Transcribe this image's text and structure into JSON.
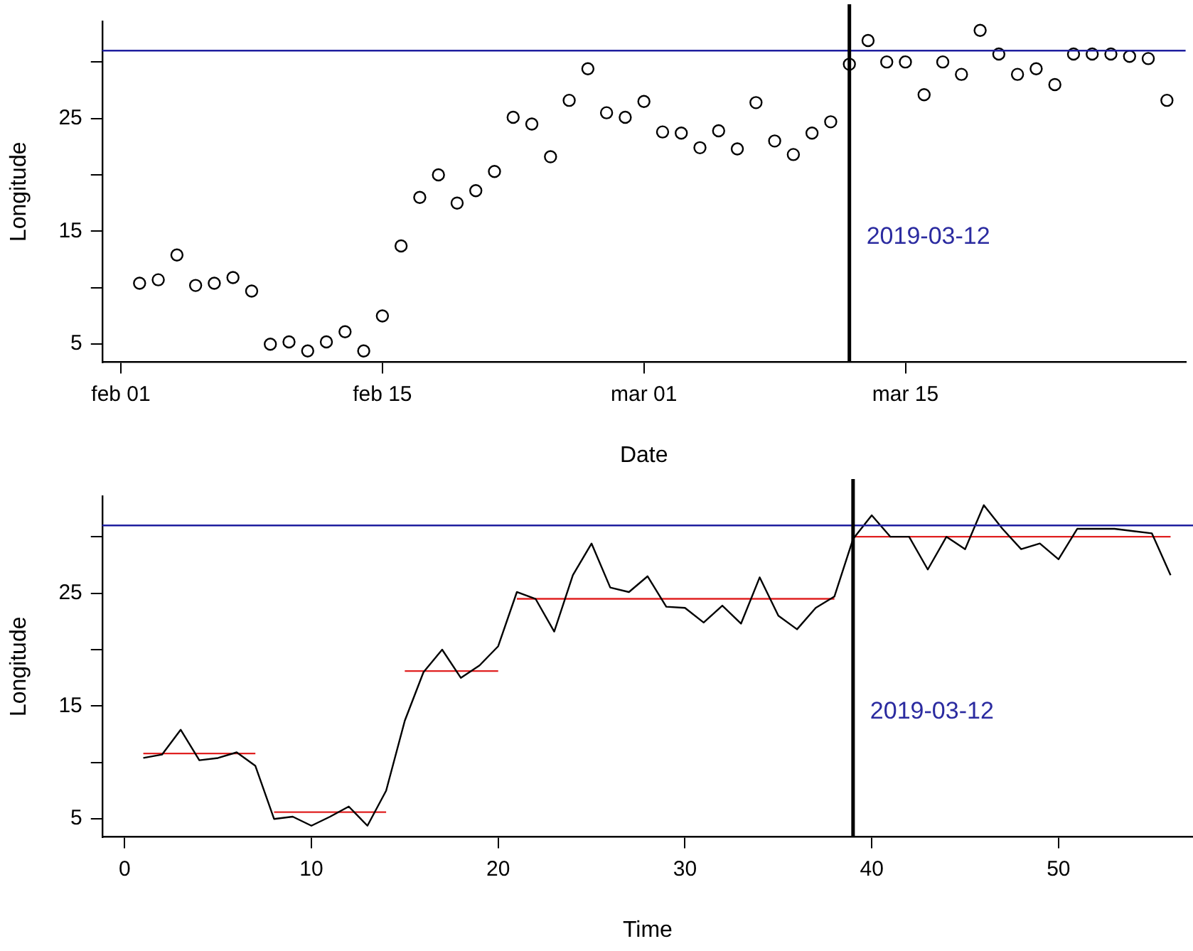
{
  "chart_data": [
    {
      "type": "scatter",
      "xlabel": "Date",
      "ylabel": "Longitude",
      "marker": "circle",
      "grid": false,
      "legend": false,
      "x": [
        "2019-02-02",
        "2019-02-03",
        "2019-02-04",
        "2019-02-05",
        "2019-02-06",
        "2019-02-07",
        "2019-02-08",
        "2019-02-09",
        "2019-02-10",
        "2019-02-11",
        "2019-02-12",
        "2019-02-13",
        "2019-02-14",
        "2019-02-15",
        "2019-02-16",
        "2019-02-17",
        "2019-02-18",
        "2019-02-19",
        "2019-02-20",
        "2019-02-21",
        "2019-02-22",
        "2019-02-23",
        "2019-02-24",
        "2019-02-25",
        "2019-02-26",
        "2019-02-27",
        "2019-02-28",
        "2019-03-01",
        "2019-03-02",
        "2019-03-03",
        "2019-03-04",
        "2019-03-05",
        "2019-03-06",
        "2019-03-07",
        "2019-03-08",
        "2019-03-09",
        "2019-03-10",
        "2019-03-11",
        "2019-03-12",
        "2019-03-13",
        "2019-03-14",
        "2019-03-15",
        "2019-03-16",
        "2019-03-17",
        "2019-03-18",
        "2019-03-19",
        "2019-03-20",
        "2019-03-21",
        "2019-03-22",
        "2019-03-23",
        "2019-03-24",
        "2019-03-25",
        "2019-03-26",
        "2019-03-27",
        "2019-03-28",
        "2019-03-29"
      ],
      "series": [
        {
          "color": "#000000",
          "values": [
            10.4,
            10.7,
            12.9,
            10.2,
            10.4,
            10.9,
            9.7,
            5.0,
            5.2,
            4.4,
            5.2,
            6.1,
            4.4,
            7.5,
            13.7,
            18.0,
            20.0,
            17.5,
            18.6,
            20.3,
            25.1,
            24.5,
            21.6,
            26.6,
            29.4,
            25.5,
            25.1,
            26.5,
            23.8,
            23.7,
            22.4,
            23.9,
            22.3,
            26.4,
            23.0,
            21.8,
            23.7,
            24.7,
            29.8,
            31.9,
            30.0,
            30.0,
            27.1,
            30.0,
            28.9,
            32.8,
            30.7,
            28.9,
            29.4,
            28.0,
            30.7,
            30.7,
            30.7,
            30.5,
            30.3,
            26.6
          ]
        }
      ],
      "xlim": [
        "2019-01-31",
        "2019-03-30"
      ],
      "xticks": [
        {
          "value": "2019-02-01",
          "label": "feb 01"
        },
        {
          "value": "2019-02-15",
          "label": "feb 15"
        },
        {
          "value": "2019-03-01",
          "label": "mar 01"
        },
        {
          "value": "2019-03-15",
          "label": "mar 15"
        }
      ],
      "ylim": [
        3.4,
        33.6
      ],
      "yticks": [
        5,
        {
          "value": 10,
          "label": null
        },
        15,
        {
          "value": 20,
          "label": null
        },
        25,
        {
          "value": 30,
          "label": null
        }
      ],
      "ref_lines": [
        {
          "axis": "y",
          "value": 31,
          "color": "#1f1f9f"
        },
        {
          "axis": "x",
          "value": "2019-03-12",
          "label": "2019-03-12",
          "color": "#000000"
        }
      ]
    },
    {
      "type": "line",
      "xlabel": "Time",
      "ylabel": "Longitude",
      "marker": "none",
      "grid": false,
      "legend": false,
      "x": [
        1,
        2,
        3,
        4,
        5,
        6,
        7,
        8,
        9,
        10,
        11,
        12,
        13,
        14,
        15,
        16,
        17,
        18,
        19,
        20,
        21,
        22,
        23,
        24,
        25,
        26,
        27,
        28,
        29,
        30,
        31,
        32,
        33,
        34,
        35,
        36,
        37,
        38,
        39,
        40,
        41,
        42,
        43,
        44,
        45,
        46,
        47,
        48,
        49,
        50,
        51,
        52,
        53,
        54,
        55,
        56
      ],
      "series": [
        {
          "color": "#000000",
          "values": [
            10.4,
            10.7,
            12.9,
            10.2,
            10.4,
            10.9,
            9.7,
            5.0,
            5.2,
            4.4,
            5.2,
            6.1,
            4.4,
            7.5,
            13.7,
            18.0,
            20.0,
            17.5,
            18.6,
            20.3,
            25.1,
            24.5,
            21.6,
            26.6,
            29.4,
            25.5,
            25.1,
            26.5,
            23.8,
            23.7,
            22.4,
            23.9,
            22.3,
            26.4,
            23.0,
            21.8,
            23.7,
            24.7,
            29.8,
            31.9,
            30.0,
            30.0,
            27.1,
            30.0,
            28.9,
            32.8,
            30.7,
            28.9,
            29.4,
            28.0,
            30.7,
            30.7,
            30.7,
            30.5,
            30.3,
            26.6
          ]
        },
        {
          "type": "line",
          "color": "#e02020",
          "x": [
            1,
            7
          ],
          "values": [
            10.8,
            10.8
          ]
        },
        {
          "type": "line",
          "color": "#e02020",
          "x": [
            8,
            14
          ],
          "values": [
            5.6,
            5.6
          ]
        },
        {
          "type": "line",
          "color": "#e02020",
          "x": [
            15,
            20
          ],
          "values": [
            18.1,
            18.1
          ]
        },
        {
          "type": "line",
          "color": "#e02020",
          "x": [
            21,
            38
          ],
          "values": [
            24.5,
            24.5
          ]
        },
        {
          "type": "line",
          "color": "#e02020",
          "x": [
            39,
            56
          ],
          "values": [
            30.0,
            30.0
          ]
        }
      ],
      "xlim": [
        -1.2,
        57.2
      ],
      "xticks": [
        0,
        10,
        20,
        30,
        40,
        50
      ],
      "ylim": [
        3.4,
        33.6
      ],
      "yticks": [
        5,
        {
          "value": 10,
          "label": null
        },
        15,
        {
          "value": 20,
          "label": null
        },
        25,
        {
          "value": 30,
          "label": null
        }
      ],
      "ref_lines": [
        {
          "axis": "y",
          "value": 31,
          "color": "#1f1f9f"
        },
        {
          "axis": "x",
          "value": 39,
          "color": "#000000"
        }
      ],
      "annotations": [
        "2019-03-12"
      ]
    }
  ]
}
